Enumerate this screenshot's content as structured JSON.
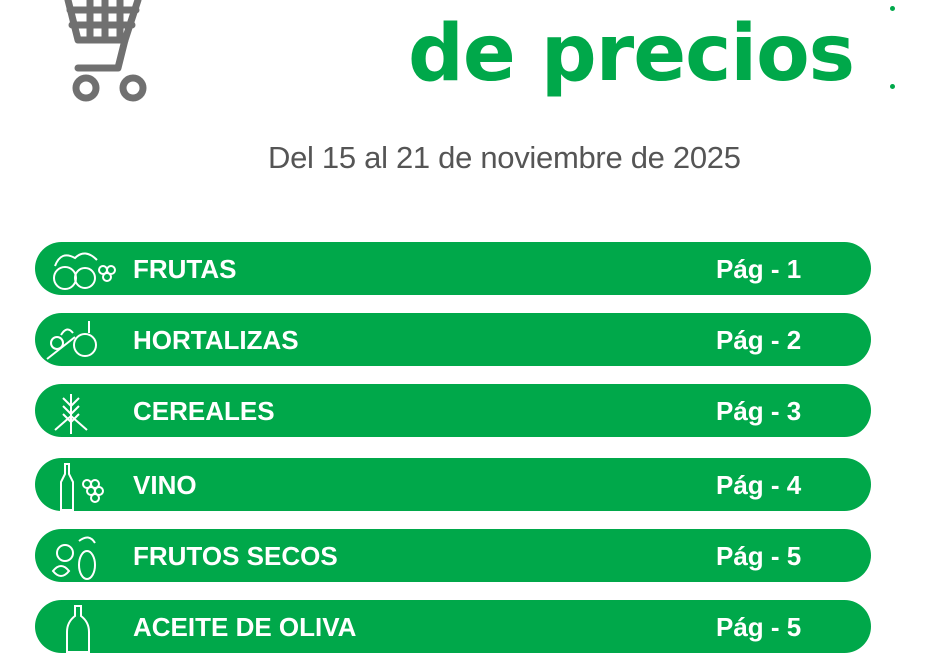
{
  "header": {
    "title_line2": "de precios",
    "date_range": "Del 15 al 21 de noviembre de 2025"
  },
  "colors": {
    "accent": "#00a84a",
    "text_gray": "#555555",
    "cart_gray": "#707070"
  },
  "sections": [
    {
      "label": "FRUTAS",
      "page": "Pág - 1",
      "icon": "fruits-icon"
    },
    {
      "label": "HORTALIZAS",
      "page": "Pág - 2",
      "icon": "vegetables-icon"
    },
    {
      "label": "CEREALES",
      "page": "Pág - 3",
      "icon": "wheat-icon"
    },
    {
      "label": "VINO",
      "page": "Pág - 4",
      "icon": "wine-icon"
    },
    {
      "label": "FRUTOS SECOS",
      "page": "Pág - 5",
      "icon": "nuts-icon"
    },
    {
      "label": "ACEITE DE OLIVA",
      "page": "Pág - 5",
      "icon": "olive-oil-icon"
    }
  ]
}
